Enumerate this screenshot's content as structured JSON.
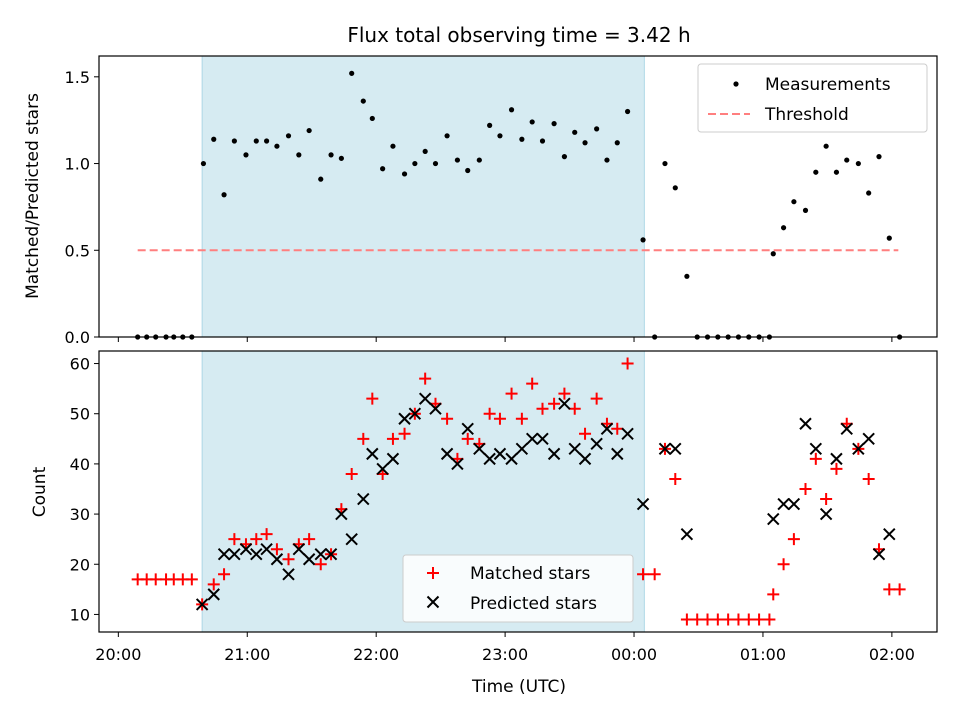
{
  "chart_data": [
    {
      "type": "scatter",
      "title": "Flux total observing time = 3.42 h",
      "xlabel": "",
      "ylabel": "Matched/Predicted stars",
      "ylim": [
        0,
        1.62
      ],
      "yticks": [
        "0.0",
        "0.5",
        "1.0",
        "1.5"
      ],
      "xlim": [
        -0.15,
        6.35
      ],
      "x_unit": "hours since 20:00 UTC",
      "shaded_interval": [
        0.65,
        4.08
      ],
      "threshold": {
        "name": "Threshold",
        "value": 0.5,
        "x_range": [
          0.15,
          6.05
        ],
        "color": "#ff7f7f"
      },
      "legend": {
        "placement": "top-right",
        "entries": [
          "Measurements",
          "Threshold"
        ]
      },
      "series": [
        {
          "name": "Measurements",
          "color": "#000000",
          "marker": "dot",
          "points": [
            [
              0.15,
              0
            ],
            [
              0.22,
              0
            ],
            [
              0.29,
              0
            ],
            [
              0.37,
              0
            ],
            [
              0.43,
              0
            ],
            [
              0.5,
              0
            ],
            [
              0.57,
              0
            ],
            [
              0.66,
              1.0
            ],
            [
              0.74,
              1.14
            ],
            [
              0.82,
              0.82
            ],
            [
              0.9,
              1.13
            ],
            [
              0.99,
              1.05
            ],
            [
              1.07,
              1.13
            ],
            [
              1.15,
              1.13
            ],
            [
              1.23,
              1.1
            ],
            [
              1.32,
              1.16
            ],
            [
              1.4,
              1.05
            ],
            [
              1.48,
              1.19
            ],
            [
              1.57,
              0.91
            ],
            [
              1.65,
              1.05
            ],
            [
              1.73,
              1.03
            ],
            [
              1.81,
              1.52
            ],
            [
              1.9,
              1.36
            ],
            [
              1.97,
              1.26
            ],
            [
              2.05,
              0.97
            ],
            [
              2.13,
              1.1
            ],
            [
              2.22,
              0.94
            ],
            [
              2.3,
              1.0
            ],
            [
              2.38,
              1.07
            ],
            [
              2.46,
              1.0
            ],
            [
              2.55,
              1.16
            ],
            [
              2.63,
              1.02
            ],
            [
              2.71,
              0.96
            ],
            [
              2.8,
              1.02
            ],
            [
              2.88,
              1.22
            ],
            [
              2.96,
              1.16
            ],
            [
              3.05,
              1.31
            ],
            [
              3.13,
              1.14
            ],
            [
              3.21,
              1.24
            ],
            [
              3.29,
              1.13
            ],
            [
              3.38,
              1.23
            ],
            [
              3.46,
              1.04
            ],
            [
              3.54,
              1.18
            ],
            [
              3.62,
              1.12
            ],
            [
              3.71,
              1.2
            ],
            [
              3.79,
              1.02
            ],
            [
              3.87,
              1.12
            ],
            [
              3.95,
              1.3
            ],
            [
              4.07,
              0.56
            ],
            [
              4.16,
              0
            ],
            [
              4.24,
              1.0
            ],
            [
              4.32,
              0.86
            ],
            [
              4.41,
              0.35
            ],
            [
              4.49,
              0
            ],
            [
              4.57,
              0
            ],
            [
              4.65,
              0
            ],
            [
              4.73,
              0
            ],
            [
              4.81,
              0
            ],
            [
              4.89,
              0
            ],
            [
              4.97,
              0
            ],
            [
              5.05,
              0
            ],
            [
              5.08,
              0.48
            ],
            [
              5.16,
              0.63
            ],
            [
              5.24,
              0.78
            ],
            [
              5.33,
              0.73
            ],
            [
              5.41,
              0.95
            ],
            [
              5.49,
              1.1
            ],
            [
              5.57,
              0.95
            ],
            [
              5.65,
              1.02
            ],
            [
              5.74,
              1.0
            ],
            [
              5.82,
              0.83
            ],
            [
              5.9,
              1.04
            ],
            [
              5.98,
              0.57
            ],
            [
              6.06,
              0
            ]
          ]
        }
      ]
    },
    {
      "type": "scatter",
      "title": "",
      "xlabel": "Time (UTC)",
      "ylabel": "Count",
      "ylim": [
        6.5,
        62.5
      ],
      "yticks": [
        "10",
        "20",
        "30",
        "40",
        "50",
        "60"
      ],
      "xlim": [
        -0.15,
        6.35
      ],
      "x_unit": "hours since 20:00 UTC",
      "xticks": [
        "20:00",
        "21:00",
        "22:00",
        "23:00",
        "00:00",
        "01:00",
        "02:00"
      ],
      "shaded_interval": [
        0.65,
        4.08
      ],
      "legend": {
        "placement": "bottom-center",
        "entries": [
          "Matched stars",
          "Predicted stars"
        ]
      },
      "series": [
        {
          "name": "Matched stars",
          "color": "#ff0000",
          "marker": "plus",
          "points": [
            [
              0.15,
              17
            ],
            [
              0.22,
              17
            ],
            [
              0.29,
              17
            ],
            [
              0.37,
              17
            ],
            [
              0.43,
              17
            ],
            [
              0.5,
              17
            ],
            [
              0.57,
              17
            ],
            [
              0.65,
              12
            ],
            [
              0.74,
              16
            ],
            [
              0.82,
              18
            ],
            [
              0.9,
              25
            ],
            [
              0.99,
              24
            ],
            [
              1.07,
              25
            ],
            [
              1.15,
              26
            ],
            [
              1.23,
              23
            ],
            [
              1.32,
              21
            ],
            [
              1.4,
              24
            ],
            [
              1.48,
              25
            ],
            [
              1.57,
              20
            ],
            [
              1.65,
              22
            ],
            [
              1.73,
              31
            ],
            [
              1.81,
              38
            ],
            [
              1.9,
              45
            ],
            [
              1.97,
              53
            ],
            [
              2.05,
              38
            ],
            [
              2.13,
              45
            ],
            [
              2.22,
              46
            ],
            [
              2.3,
              50
            ],
            [
              2.38,
              57
            ],
            [
              2.46,
              52
            ],
            [
              2.55,
              49
            ],
            [
              2.63,
              41
            ],
            [
              2.71,
              45
            ],
            [
              2.8,
              44
            ],
            [
              2.88,
              50
            ],
            [
              2.96,
              49
            ],
            [
              3.05,
              54
            ],
            [
              3.13,
              49
            ],
            [
              3.21,
              56
            ],
            [
              3.29,
              51
            ],
            [
              3.38,
              52
            ],
            [
              3.46,
              54
            ],
            [
              3.54,
              51
            ],
            [
              3.62,
              46
            ],
            [
              3.71,
              53
            ],
            [
              3.79,
              48
            ],
            [
              3.87,
              47
            ],
            [
              3.95,
              60
            ],
            [
              4.07,
              18
            ],
            [
              4.16,
              18
            ],
            [
              4.24,
              43
            ],
            [
              4.32,
              37
            ],
            [
              4.41,
              9
            ],
            [
              4.49,
              9
            ],
            [
              4.57,
              9
            ],
            [
              4.65,
              9
            ],
            [
              4.73,
              9
            ],
            [
              4.81,
              9
            ],
            [
              4.89,
              9
            ],
            [
              4.97,
              9
            ],
            [
              5.05,
              9
            ],
            [
              5.08,
              14
            ],
            [
              5.16,
              20
            ],
            [
              5.24,
              25
            ],
            [
              5.33,
              35
            ],
            [
              5.41,
              41
            ],
            [
              5.49,
              33
            ],
            [
              5.57,
              39
            ],
            [
              5.65,
              48
            ],
            [
              5.74,
              43
            ],
            [
              5.82,
              37
            ],
            [
              5.9,
              23
            ],
            [
              5.98,
              15
            ],
            [
              6.06,
              15
            ]
          ]
        },
        {
          "name": "Predicted stars",
          "color": "#000000",
          "marker": "x",
          "points": [
            [
              0.65,
              12
            ],
            [
              0.74,
              14
            ],
            [
              0.82,
              22
            ],
            [
              0.9,
              22
            ],
            [
              0.99,
              23
            ],
            [
              1.07,
              22
            ],
            [
              1.15,
              23
            ],
            [
              1.23,
              21
            ],
            [
              1.32,
              18
            ],
            [
              1.4,
              23
            ],
            [
              1.48,
              21
            ],
            [
              1.57,
              22
            ],
            [
              1.65,
              22
            ],
            [
              1.73,
              30
            ],
            [
              1.81,
              25
            ],
            [
              1.9,
              33
            ],
            [
              1.97,
              42
            ],
            [
              2.05,
              39
            ],
            [
              2.13,
              41
            ],
            [
              2.22,
              49
            ],
            [
              2.3,
              50
            ],
            [
              2.38,
              53
            ],
            [
              2.46,
              51
            ],
            [
              2.55,
              42
            ],
            [
              2.63,
              40
            ],
            [
              2.71,
              47
            ],
            [
              2.8,
              43
            ],
            [
              2.88,
              41
            ],
            [
              2.96,
              42
            ],
            [
              3.05,
              41
            ],
            [
              3.13,
              43
            ],
            [
              3.21,
              45
            ],
            [
              3.29,
              45
            ],
            [
              3.38,
              42
            ],
            [
              3.46,
              52
            ],
            [
              3.54,
              43
            ],
            [
              3.62,
              41
            ],
            [
              3.71,
              44
            ],
            [
              3.79,
              47
            ],
            [
              3.87,
              42
            ],
            [
              3.95,
              46
            ],
            [
              4.07,
              32
            ],
            [
              4.24,
              43
            ],
            [
              4.32,
              43
            ],
            [
              4.41,
              26
            ],
            [
              5.08,
              29
            ],
            [
              5.16,
              32
            ],
            [
              5.24,
              32
            ],
            [
              5.33,
              48
            ],
            [
              5.41,
              43
            ],
            [
              5.49,
              30
            ],
            [
              5.57,
              41
            ],
            [
              5.65,
              47
            ],
            [
              5.74,
              43
            ],
            [
              5.82,
              45
            ],
            [
              5.9,
              22
            ],
            [
              5.98,
              26
            ]
          ]
        }
      ]
    }
  ]
}
